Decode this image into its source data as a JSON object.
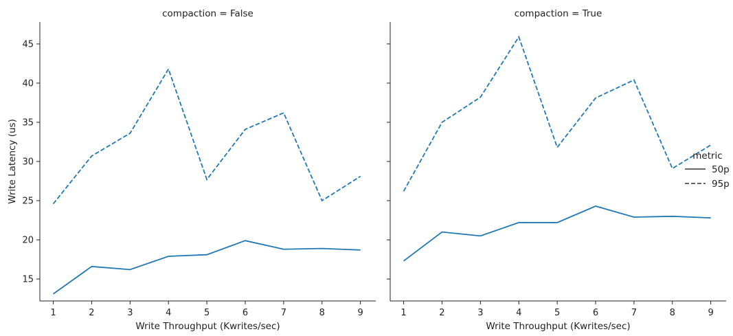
{
  "chart_data": {
    "type": "line",
    "ylabel": "Write Latency (us)",
    "xlabel": "Write Throughput (Kwrites/sec)",
    "x": [
      1,
      2,
      3,
      4,
      5,
      6,
      7,
      8,
      9
    ],
    "xlim": [
      0.65,
      9.4
    ],
    "ylim": [
      12.2,
      47.8
    ],
    "yticks": [
      15,
      20,
      25,
      30,
      35,
      40,
      45
    ],
    "color": "#1f77b4",
    "legend": {
      "title": "metric",
      "placement": "right",
      "entries": [
        {
          "label": "50p",
          "style": "solid"
        },
        {
          "label": "95p",
          "style": "dashed"
        }
      ]
    },
    "panels": [
      {
        "title": "compaction = False",
        "series": [
          {
            "name": "50p",
            "style": "solid",
            "values": [
              13.1,
              16.6,
              16.2,
              17.9,
              18.1,
              19.9,
              18.8,
              18.9,
              18.7
            ]
          },
          {
            "name": "95p",
            "style": "dashed",
            "values": [
              24.6,
              30.7,
              33.6,
              41.8,
              27.7,
              34.1,
              36.2,
              25.0,
              28.1
            ]
          }
        ]
      },
      {
        "title": "compaction = True",
        "series": [
          {
            "name": "50p",
            "style": "solid",
            "values": [
              17.3,
              21.0,
              20.5,
              22.2,
              22.2,
              24.3,
              22.9,
              23.0,
              22.8
            ]
          },
          {
            "name": "95p",
            "style": "dashed",
            "values": [
              26.2,
              35.0,
              38.2,
              45.9,
              31.8,
              38.1,
              40.4,
              29.1,
              32.1
            ]
          }
        ]
      }
    ]
  }
}
